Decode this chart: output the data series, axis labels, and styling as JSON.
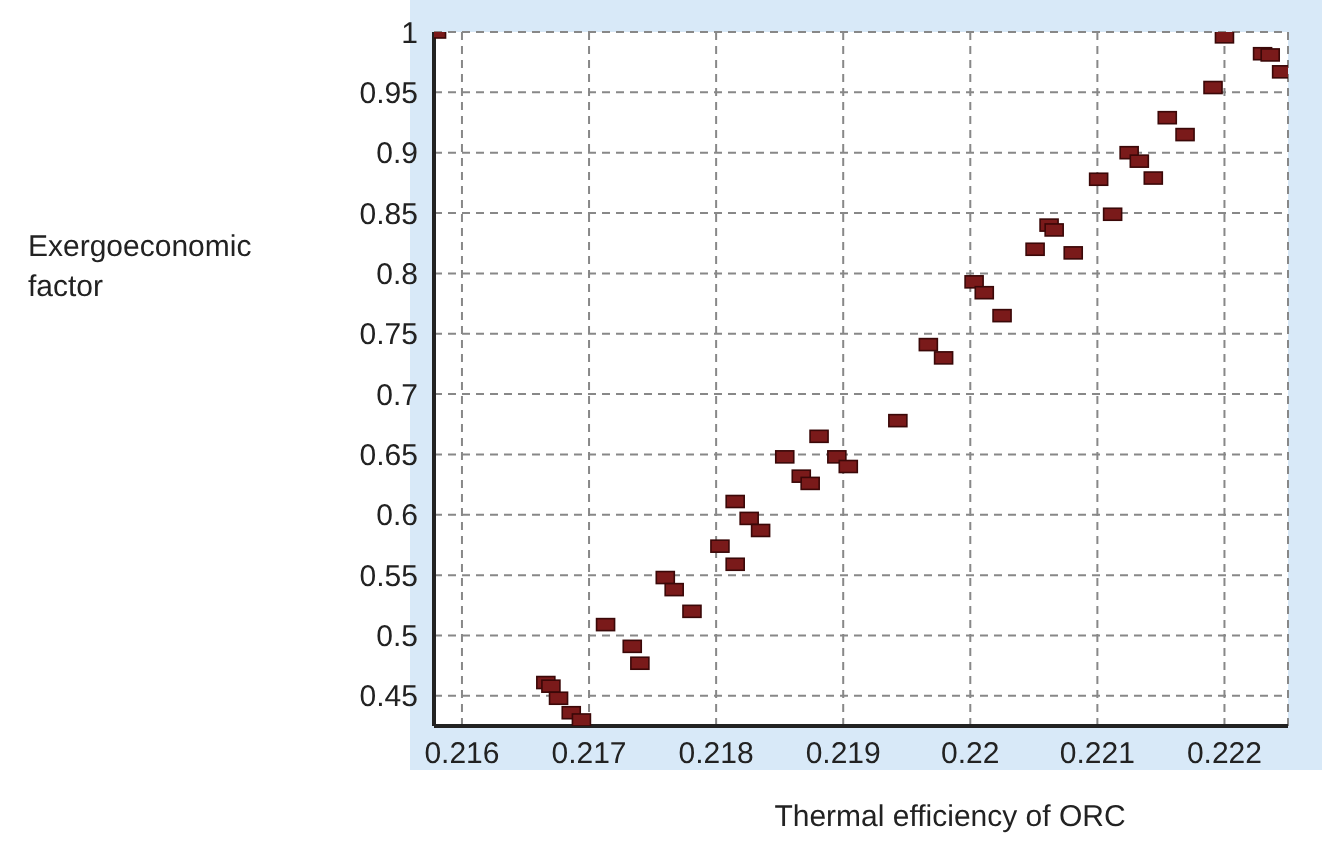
{
  "chart_data": {
    "type": "scatter",
    "xlabel": "Thermal efficiency of ORC",
    "ylabel": "Exergoeconomic factor",
    "x": [
      0.2158,
      0.222,
      0.2223,
      0.22236,
      0.22245,
      0.22191,
      0.22155,
      0.22169,
      0.22125,
      0.22133,
      0.22144,
      0.22101,
      0.22112,
      0.22062,
      0.22066,
      0.22051,
      0.22081,
      0.22003,
      0.22011,
      0.22025,
      0.21967,
      0.21979,
      0.21943,
      0.21881,
      0.21854,
      0.21895,
      0.21904,
      0.21867,
      0.21874,
      0.21815,
      0.21826,
      0.21835,
      0.21803,
      0.21815,
      0.2176,
      0.21767,
      0.21781,
      0.21713,
      0.21734,
      0.2174,
      0.21666,
      0.2167,
      0.21676,
      0.21686,
      0.21694
    ],
    "series": [
      {
        "color": "#7a1a1a",
        "values": [
          1.0,
          0.996,
          0.982,
          0.981,
          0.967,
          0.954,
          0.929,
          0.915,
          0.9,
          0.893,
          0.879,
          0.878,
          0.849,
          0.84,
          0.836,
          0.82,
          0.817,
          0.793,
          0.784,
          0.765,
          0.741,
          0.73,
          0.678,
          0.665,
          0.648,
          0.648,
          0.64,
          0.632,
          0.626,
          0.611,
          0.597,
          0.587,
          0.574,
          0.559,
          0.548,
          0.538,
          0.52,
          0.509,
          0.491,
          0.477,
          0.461,
          0.458,
          0.448,
          0.436,
          0.43
        ]
      }
    ],
    "xlim": [
      0.21578,
      0.2225
    ],
    "xticks": [
      0.216,
      0.217,
      0.218,
      0.219,
      0.22,
      0.221,
      0.222
    ],
    "ylim": [
      0.425,
      1
    ],
    "yticks": [
      0.45,
      0.5,
      0.55,
      0.6,
      0.65,
      0.7,
      0.75,
      0.8,
      0.85,
      0.9,
      0.95,
      1
    ],
    "grid": true,
    "marker": "square",
    "legend": false
  }
}
